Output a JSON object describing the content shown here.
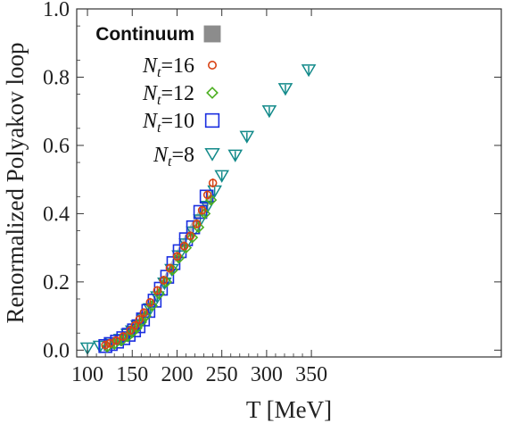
{
  "chart_data": {
    "type": "scatter",
    "title": "",
    "xlabel": "T [MeV]",
    "ylabel": "Renormalized Polyakov loop",
    "xlim": [
      88,
      562
    ],
    "ylim": [
      -0.02,
      1.0
    ],
    "xticks": [
      100,
      150,
      200,
      250,
      300,
      350
    ],
    "yticks": [
      0.0,
      0.2,
      0.4,
      0.6,
      0.8,
      1.0
    ],
    "xtick_labels": [
      "100",
      "150",
      "200",
      "250",
      "300",
      "350"
    ],
    "ytick_labels": [
      "0.0",
      "0.2",
      "0.4",
      "0.6",
      "0.8",
      "1.0"
    ],
    "legend_position": "top-left",
    "grid": false,
    "colors": {
      "continuum": "#8c8c8c",
      "nt16": "#d84315",
      "nt12": "#4caf20",
      "nt10": "#1a2ee0",
      "nt8": "#128a8a"
    },
    "continuum_band": {
      "name": "Continuum",
      "x": [
        120,
        130,
        140,
        150,
        160,
        170,
        180,
        190,
        200,
        210,
        220,
        230,
        240
      ],
      "lower": [
        0.008,
        0.018,
        0.03,
        0.045,
        0.07,
        0.11,
        0.16,
        0.215,
        0.268,
        0.318,
        0.365,
        0.405,
        0.44
      ],
      "upper": [
        0.016,
        0.028,
        0.042,
        0.06,
        0.09,
        0.135,
        0.185,
        0.24,
        0.292,
        0.342,
        0.392,
        0.432,
        0.47
      ]
    },
    "series": [
      {
        "name": "N_t=16",
        "marker": "circle",
        "x": [
          120,
          125,
          132,
          140,
          148,
          153,
          158,
          163,
          170,
          178,
          185,
          192,
          200,
          208,
          215,
          222,
          228,
          234,
          240
        ],
        "y": [
          0.015,
          0.02,
          0.028,
          0.04,
          0.058,
          0.072,
          0.09,
          0.11,
          0.14,
          0.175,
          0.205,
          0.24,
          0.275,
          0.305,
          0.335,
          0.37,
          0.41,
          0.455,
          0.49
        ]
      },
      {
        "name": "N_t=12",
        "marker": "diamond",
        "x": [
          122,
          130,
          138,
          145,
          150,
          155,
          160,
          165,
          172,
          180,
          188,
          195,
          202,
          210,
          217,
          224,
          231,
          238
        ],
        "y": [
          0.01,
          0.018,
          0.028,
          0.04,
          0.052,
          0.065,
          0.082,
          0.1,
          0.13,
          0.165,
          0.2,
          0.235,
          0.27,
          0.3,
          0.33,
          0.36,
          0.4,
          0.44
        ]
      },
      {
        "name": "N_t=10",
        "marker": "square",
        "x": [
          120,
          126,
          133,
          140,
          146,
          152,
          157,
          162,
          168,
          175,
          182,
          189,
          196,
          203,
          210,
          218,
          226,
          233
        ],
        "y": [
          0.012,
          0.018,
          0.025,
          0.035,
          0.045,
          0.058,
          0.07,
          0.09,
          0.115,
          0.145,
          0.18,
          0.215,
          0.255,
          0.29,
          0.325,
          0.36,
          0.405,
          0.45
        ]
      },
      {
        "name": "N_t=8",
        "marker": "triangle-down",
        "x": [
          100,
          114,
          127,
          137,
          145,
          150,
          156,
          163,
          170,
          178,
          186,
          194,
          202,
          210,
          218,
          226,
          234,
          242,
          250,
          265,
          278,
          303,
          321,
          347
        ],
        "y": [
          0.005,
          0.01,
          0.02,
          0.03,
          0.045,
          0.055,
          0.07,
          0.09,
          0.12,
          0.155,
          0.195,
          0.235,
          0.275,
          0.31,
          0.345,
          0.38,
          0.42,
          0.465,
          0.51,
          0.57,
          0.625,
          0.7,
          0.765,
          0.82
        ]
      }
    ],
    "legend": [
      {
        "label_main": "Continuum",
        "label_sub": "",
        "label_rest": "",
        "marker": "filled-square",
        "color_key": "continuum"
      },
      {
        "label_main": "N",
        "label_sub": "t",
        "label_rest": "=16",
        "marker": "circle",
        "color_key": "nt16"
      },
      {
        "label_main": "N",
        "label_sub": "t",
        "label_rest": "=12",
        "marker": "diamond",
        "color_key": "nt12"
      },
      {
        "label_main": "N",
        "label_sub": "t",
        "label_rest": "=10",
        "marker": "square",
        "color_key": "nt10"
      },
      {
        "label_main": "N",
        "label_sub": "t",
        "label_rest": "=8",
        "marker": "triangle-down",
        "color_key": "nt8"
      }
    ]
  }
}
